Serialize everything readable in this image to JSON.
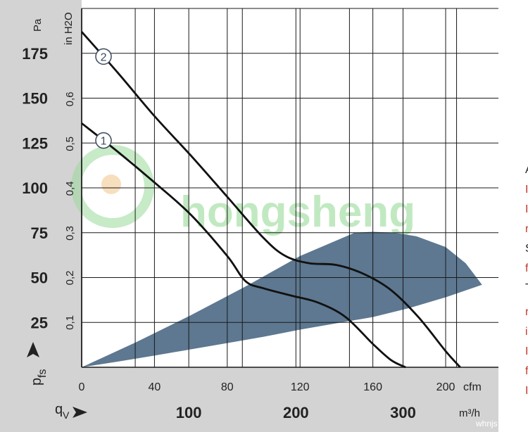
{
  "chart_data": {
    "type": "line",
    "title": "",
    "y_axis_left": {
      "unit_label": "Pa",
      "ticks": [
        25,
        50,
        75,
        100,
        125,
        150,
        175
      ],
      "range": [
        0,
        200
      ]
    },
    "y_axis_inH2O": {
      "unit_label": "in H2O",
      "ticks": [
        "0,1",
        "0,2",
        "0,3",
        "0,4",
        "0,5",
        "0,6"
      ],
      "tick_values": [
        0.1,
        0.2,
        0.3,
        0.4,
        0.5,
        0.6
      ]
    },
    "x_axis_cfm": {
      "unit_label": "cfm",
      "ticks": [
        0,
        40,
        80,
        120,
        160,
        200
      ],
      "range": [
        0,
        229
      ]
    },
    "x_axis_m3h": {
      "unit_label": "m³/h",
      "ticks": [
        "100",
        "200",
        "300"
      ],
      "tick_values": [
        100,
        200,
        300
      ]
    },
    "ylabel": "p",
    "ylabel_sub": "fs",
    "xlabel": "q",
    "xlabel_sub": "V",
    "grid": true,
    "series": [
      {
        "name": "1",
        "x": [
          0,
          20,
          40,
          60,
          80,
          90,
          100,
          115,
          130,
          145,
          160,
          170,
          178
        ],
        "y": [
          136,
          120,
          103,
          85,
          62,
          48,
          44,
          40,
          36,
          28,
          13,
          4,
          0
        ]
      },
      {
        "name": "2",
        "x": [
          0,
          20,
          40,
          60,
          80,
          100,
          112,
          125,
          140,
          155,
          170,
          185,
          200,
          208
        ],
        "y": [
          187,
          164,
          140,
          118,
          95,
          72,
          62,
          58,
          57,
          52,
          43,
          28,
          9,
          0
        ]
      }
    ],
    "operating_range": {
      "upper_x": [
        0,
        30,
        60,
        90,
        120,
        150,
        160,
        172,
        184,
        200,
        211,
        220
      ],
      "upper_y": [
        0,
        14,
        29,
        45,
        62,
        75,
        75.5,
        75,
        73,
        67,
        58,
        46
      ],
      "lower_x": [
        220,
        200,
        180,
        160,
        140,
        120,
        100,
        80,
        60,
        40,
        20,
        0
      ],
      "lower_y": [
        46,
        39,
        33,
        28,
        24.5,
        21,
        17,
        13.5,
        10,
        6.5,
        3.2,
        0
      ],
      "color": "#5d7890"
    },
    "colors": {
      "curve": "#111111",
      "axis_panel": "#d3d3d3",
      "grid": "#1a1a1a"
    }
  },
  "watermark": {
    "text": "hongsheng",
    "color": "#8fd88f"
  },
  "side_text": {
    "letters": [
      "A",
      "I",
      "I",
      "r",
      "S",
      "f",
      "T",
      "r",
      "i",
      "I",
      "f",
      "I"
    ]
  },
  "footer_text": "whnjs"
}
